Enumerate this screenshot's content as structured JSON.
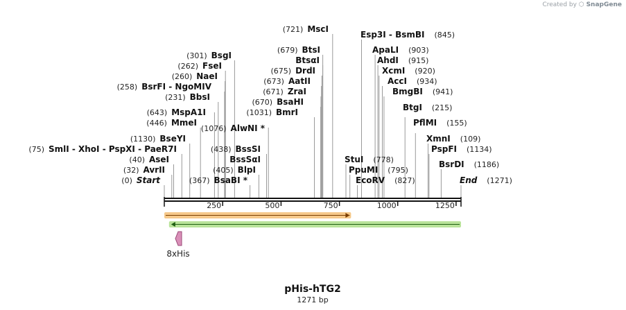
{
  "credit": {
    "prefix": "Created by",
    "brand": "SnapGene"
  },
  "plasmid": {
    "name": "pHis-hTG2",
    "length_label": "1271 bp",
    "length": 1271
  },
  "sites": [
    {
      "pos_label": "(721)",
      "name": "MscI",
      "bp": 721
    },
    {
      "pos_label": "(845)",
      "name": "Esp3I",
      "name2": "BsmBI",
      "bp": 845
    },
    {
      "pos_label": "(679)",
      "name": "BtsI",
      "bp": 679
    },
    {
      "pos_label": "(903)",
      "name": "ApaLI",
      "bp": 903
    },
    {
      "pos_label": "(301)",
      "name": "BsgI",
      "bp": 301
    },
    {
      "pos_label": "",
      "name": "BtsαI",
      "bp": 679
    },
    {
      "pos_label": "(915)",
      "name": "AhdI",
      "bp": 915
    },
    {
      "pos_label": "(262)",
      "name": "FseI",
      "bp": 262
    },
    {
      "pos_label": "(675)",
      "name": "DrdI",
      "bp": 675
    },
    {
      "pos_label": "(920)",
      "name": "XcmI",
      "bp": 920
    },
    {
      "pos_label": "(260)",
      "name": "NaeI",
      "bp": 260
    },
    {
      "pos_label": "(673)",
      "name": "AatII",
      "bp": 673
    },
    {
      "pos_label": "(934)",
      "name": "AccI",
      "bp": 934
    },
    {
      "pos_label": "(258)",
      "name": "BsrFI",
      "name2": "NgoMIV",
      "bp": 258
    },
    {
      "pos_label": "(671)",
      "name": "ZraI",
      "bp": 671
    },
    {
      "pos_label": "(941)",
      "name": "BmgBI",
      "bp": 941
    },
    {
      "pos_label": "(231)",
      "name": "BbsI",
      "bp": 231
    },
    {
      "pos_label": "(670)",
      "name": "BsaHI",
      "bp": 670
    },
    {
      "pos_label": "(215)",
      "name": "BtgI",
      "bp": 215
    },
    {
      "pos_label": "(643)",
      "name": "MspA1I",
      "bp": 643
    },
    {
      "pos_label": "(1031)",
      "name": "BmrI",
      "bp": 1031
    },
    {
      "pos_label": "(155)",
      "name": "PflMI",
      "bp": 155
    },
    {
      "pos_label": "(446)",
      "name": "MmeI",
      "bp": 446
    },
    {
      "pos_label": "(1076)",
      "name": "AlwNI *",
      "bp": 1076
    },
    {
      "pos_label": "(109)",
      "name": "XmnI",
      "bp": 109
    },
    {
      "pos_label": "(1130)",
      "name": "BseYI",
      "bp": 1130
    },
    {
      "pos_label": "(75)",
      "name": "SmlI",
      "name2": "XhoI",
      "name3": "PspXI",
      "name4": "PaeR7I",
      "bp": 75
    },
    {
      "pos_label": "(438)",
      "name": "BssSI",
      "bp": 438
    },
    {
      "pos_label": "(1134)",
      "name": "PspFI",
      "bp": 1134
    },
    {
      "pos_label": "(40)",
      "name": "AseI",
      "bp": 40
    },
    {
      "pos_label": "",
      "name": "BssSαI",
      "bp": 438
    },
    {
      "pos_label": "(778)",
      "name": "StuI",
      "bp": 778
    },
    {
      "pos_label": "(32)",
      "name": "AvrII",
      "bp": 32
    },
    {
      "pos_label": "(405)",
      "name": "BlpI",
      "bp": 405
    },
    {
      "pos_label": "(795)",
      "name": "PpuMI",
      "bp": 795
    },
    {
      "pos_label": "(1186)",
      "name": "BsrDI",
      "bp": 1186
    },
    {
      "pos_label": "(0)",
      "name": "Start",
      "bp": 0
    },
    {
      "pos_label": "(367)",
      "name": "BsaBI *",
      "bp": 367
    },
    {
      "pos_label": "(827)",
      "name": "EcoRV",
      "bp": 827
    },
    {
      "pos_label": "(1271)",
      "name": "End",
      "bp": 1271
    }
  ],
  "ticks": [
    {
      "bp": 250,
      "label": "250"
    },
    {
      "bp": 500,
      "label": "500"
    },
    {
      "bp": 750,
      "label": "750"
    },
    {
      "bp": 1000,
      "label": "1000"
    },
    {
      "bp": 1250,
      "label": "1250"
    }
  ],
  "features": [
    {
      "name": "",
      "start": 0,
      "end": 800,
      "direction": "forward",
      "color": "#f6c98a",
      "stroke": "#e0952d"
    },
    {
      "name": "",
      "start": 50,
      "end": 1271,
      "direction": "reverse",
      "color": "#b9e39a",
      "stroke": "#4f9d2a"
    },
    {
      "name": "8xHis",
      "start": 50,
      "end": 80,
      "direction": "reverse",
      "color": "#d98fb8",
      "stroke": "#9b4a78"
    }
  ]
}
